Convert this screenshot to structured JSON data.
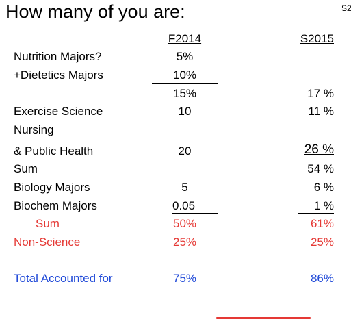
{
  "title": "How many of you are:",
  "corner_text": "S2",
  "columns": {
    "col1": "F2014",
    "col2": "S2015"
  },
  "rows": [
    {
      "label": "Nutrition Majors?",
      "col1": "5%",
      "col2": ""
    },
    {
      "label": "+Dietetics Majors",
      "col1": "10%",
      "col2": ""
    },
    {
      "label": "",
      "col1": "15%",
      "col2": "17 %"
    },
    {
      "label": "Exercise Science",
      "col1": "10",
      "col2": "11 %"
    },
    {
      "label": "Nursing",
      "col1": "",
      "col2": ""
    },
    {
      "label": "& Public Health",
      "col1": "20",
      "col2": "26 %"
    },
    {
      "label": "Sum",
      "col1": "",
      "col2": "54 %"
    },
    {
      "label": "Biology Majors",
      "col1": "5",
      "col2": "6 %"
    },
    {
      "label": "Biochem Majors",
      "col1": "0.05",
      "col2": "1 %"
    },
    {
      "label": "Sum",
      "col1": "50%",
      "col2": "61%"
    },
    {
      "label": "Non-Science",
      "col1": "25%",
      "col2": "25%"
    },
    {
      "label": "Total Accounted for",
      "col1": "75%",
      "col2": "86%"
    }
  ],
  "colors": {
    "red": "#e53935",
    "blue": "#1f49d8"
  }
}
